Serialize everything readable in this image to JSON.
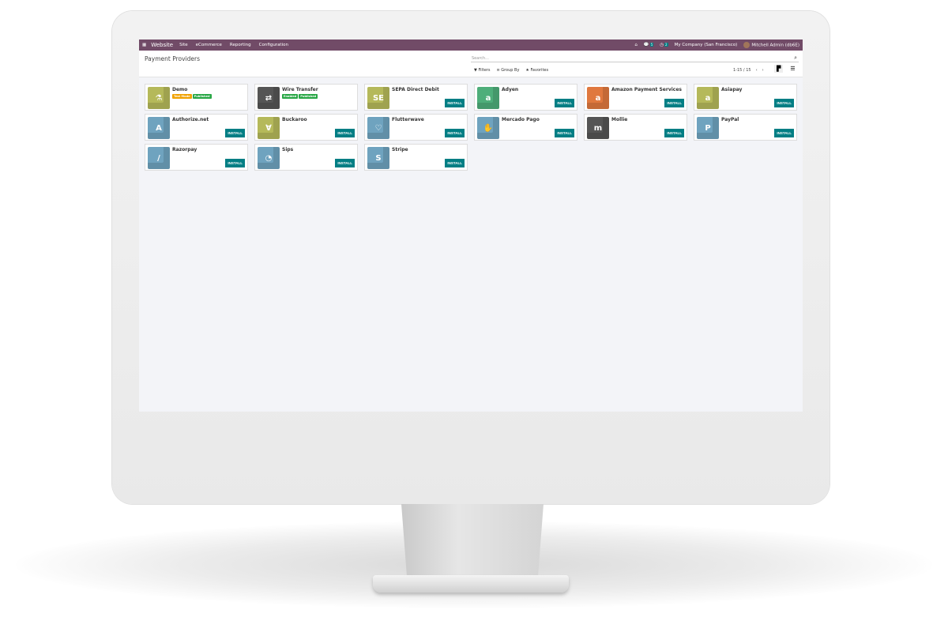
{
  "navbar": {
    "app": "Website",
    "menu": [
      "Site",
      "eCommerce",
      "Reporting",
      "Configuration"
    ],
    "messages_count": "5",
    "activities_count": "2",
    "company": "My Company (San Francisco)",
    "user": "Mitchell Admin (db6E)"
  },
  "control_panel": {
    "title": "Payment Providers",
    "search_placeholder": "Search...",
    "filters": "Filters",
    "group_by": "Group By",
    "favorites": "Favorites",
    "pager": "1-15 / 15"
  },
  "install_label": "INSTALL",
  "providers": [
    {
      "name": "Demo",
      "color": "#b5b95a",
      "glyph": "⚗",
      "tags": [
        {
          "label": "Test Mode",
          "color": "#f0a100"
        },
        {
          "label": "Published",
          "color": "#28a745"
        }
      ]
    },
    {
      "name": "Wire Transfer",
      "color": "#555555",
      "glyph": "⇄",
      "tags": [
        {
          "label": "Enabled",
          "color": "#28a745"
        },
        {
          "label": "Published",
          "color": "#28a745"
        }
      ]
    },
    {
      "name": "SEPA Direct Debit",
      "color": "#b5b95a",
      "glyph": "SE"
    },
    {
      "name": "Adyen",
      "color": "#4eae7a",
      "glyph": "a"
    },
    {
      "name": "Amazon Payment Services",
      "color": "#e0783e",
      "glyph": "a"
    },
    {
      "name": "Asiapay",
      "color": "#b5b95a",
      "glyph": "a"
    },
    {
      "name": "Authorize.net",
      "color": "#6fa3bf",
      "glyph": "A"
    },
    {
      "name": "Buckaroo",
      "color": "#b5b95a",
      "glyph": "∀"
    },
    {
      "name": "Flutterwave",
      "color": "#6fa3bf",
      "glyph": "♡"
    },
    {
      "name": "Mercado Pago",
      "color": "#6fa3bf",
      "glyph": "✋"
    },
    {
      "name": "Mollie",
      "color": "#555555",
      "glyph": "m"
    },
    {
      "name": "PayPal",
      "color": "#6fa3bf",
      "glyph": "P"
    },
    {
      "name": "Razorpay",
      "color": "#6fa3bf",
      "glyph": "/"
    },
    {
      "name": "Sips",
      "color": "#6fa3bf",
      "glyph": "◔"
    },
    {
      "name": "Stripe",
      "color": "#6fa3bf",
      "glyph": "S"
    }
  ]
}
